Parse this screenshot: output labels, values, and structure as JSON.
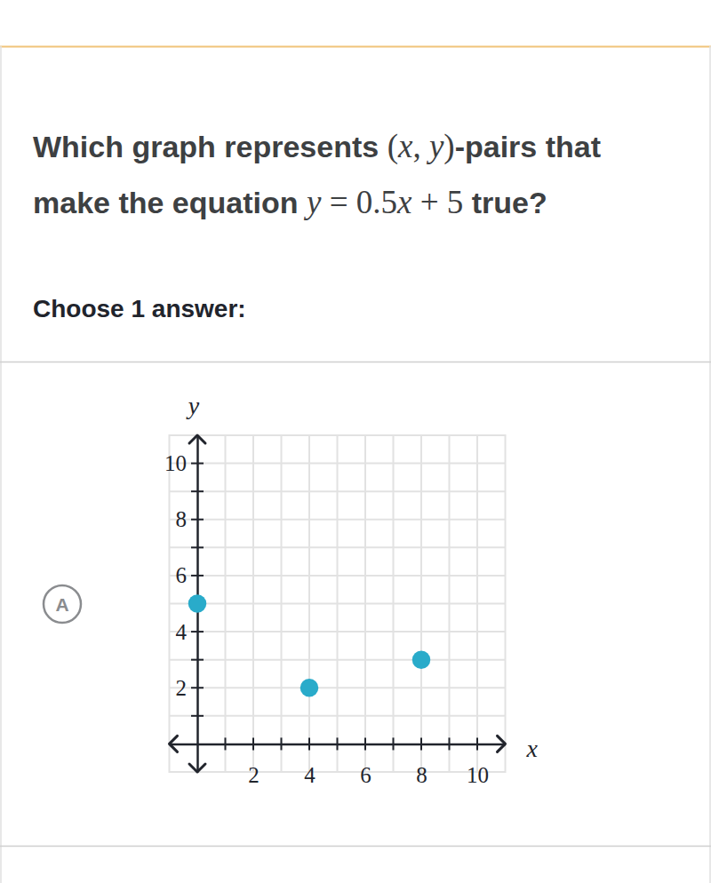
{
  "page": {
    "question": [
      [
        "Which graph represents ",
        "(x, y)",
        "-pairs that"
      ],
      [
        "make the equation ",
        "y = 0.5x + 5",
        " true?"
      ]
    ],
    "instruction": "Choose 1 answer:",
    "choice": "A"
  },
  "chart_data": {
    "type": "scatter",
    "x_label": "x",
    "y_label": "y",
    "x": [
      0,
      4,
      8
    ],
    "values": [
      5,
      2,
      3
    ],
    "color": "#29abca",
    "marker": "circle",
    "xlim": [
      -1,
      11
    ],
    "ylim": [
      -1,
      11
    ],
    "xticks": [
      2,
      4,
      6,
      8,
      10
    ],
    "yticks": [
      2,
      4,
      6,
      8,
      10
    ],
    "minor_xticks": [
      1,
      3,
      5,
      7,
      9
    ],
    "minor_yticks": [
      1,
      3,
      5,
      7,
      9
    ],
    "grid": true
  }
}
